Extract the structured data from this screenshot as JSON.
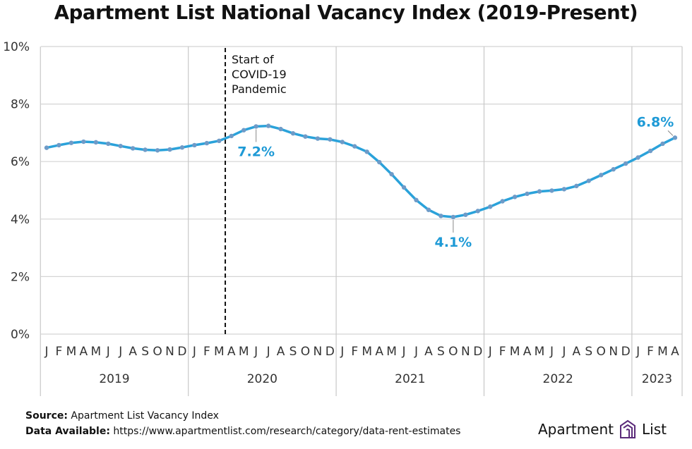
{
  "title": "Apartment List National Vacancy Index (2019-Present)",
  "source_label": "Source:",
  "source_text": "Apartment List Vacancy Index",
  "data_label": "Data Available:",
  "data_text": "https://www.apartmentlist.com/research/category/data-rent-estimates",
  "brand": {
    "left": "Apartment",
    "right": "List"
  },
  "colors": {
    "line": "#2AA2DA",
    "marker": "#6E9BC8",
    "callout": "#1E9AD6"
  },
  "chart_data": {
    "type": "line",
    "ylim": [
      0,
      10
    ],
    "yticks": [
      "0%",
      "2%",
      "4%",
      "6%",
      "8%",
      "10%"
    ],
    "grid": true,
    "month_letters": [
      "J",
      "F",
      "M",
      "A",
      "M",
      "J",
      "J",
      "A",
      "S",
      "O",
      "N",
      "D"
    ],
    "years": [
      "2019",
      "2020",
      "2021",
      "2022",
      "2023"
    ],
    "months_last_year": 4,
    "annotation": {
      "text_lines": [
        "Start of",
        "COVID-19",
        "Pandemic"
      ],
      "x": 14.5
    },
    "callouts": [
      {
        "label": "7.2%",
        "index": 17
      },
      {
        "label": "4.1%",
        "index": 33
      },
      {
        "label": "6.8%",
        "index": 51
      }
    ],
    "series": [
      {
        "values": [
          6.48,
          6.57,
          6.65,
          6.69,
          6.67,
          6.62,
          6.54,
          6.46,
          6.41,
          6.39,
          6.42,
          6.49,
          6.57,
          6.64,
          6.72,
          6.89,
          7.09,
          7.22,
          7.24,
          7.13,
          6.98,
          6.87,
          6.8,
          6.77,
          6.68,
          6.53,
          6.34,
          5.98,
          5.56,
          5.1,
          4.66,
          4.32,
          4.11,
          4.07,
          4.15,
          4.28,
          4.43,
          4.62,
          4.77,
          4.88,
          4.96,
          4.99,
          5.04,
          5.15,
          5.33,
          5.53,
          5.73,
          5.93,
          6.14,
          6.37,
          6.62,
          6.83
        ]
      }
    ]
  }
}
